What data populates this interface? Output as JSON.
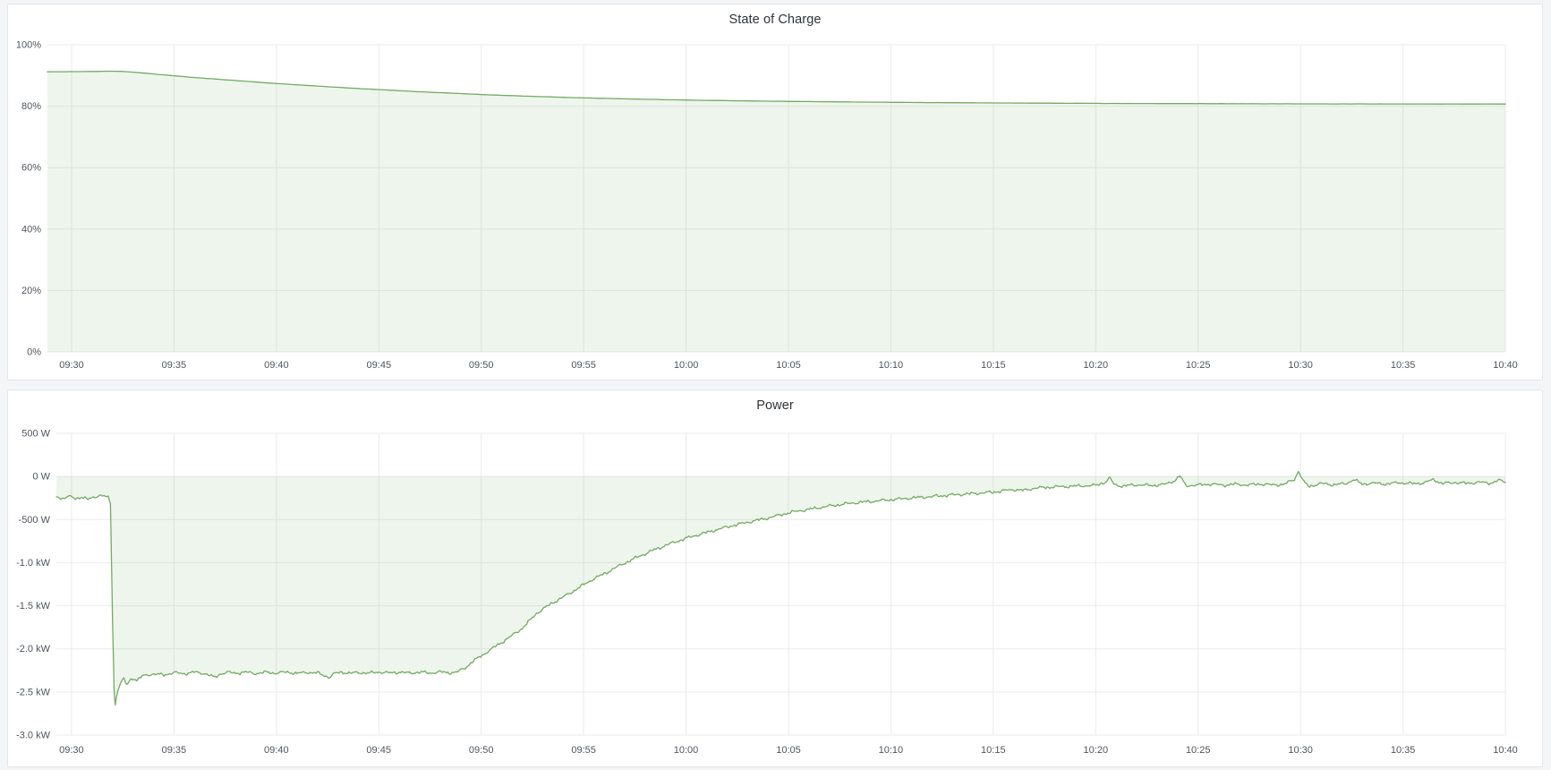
{
  "page": {
    "background": "#f4f5f6",
    "panel_background": "#ffffff",
    "panel_border": "#e4e6e9",
    "grid_color": "#ebebed",
    "axis_text_color": "#4f555c",
    "title_text_color": "#2f3338"
  },
  "chart_data": [
    {
      "type": "area",
      "title": "State of Charge",
      "xlabel": "",
      "ylabel": "",
      "legend": "none",
      "grid": true,
      "x_min": -1.18,
      "x_max": 70,
      "ylim": [
        0,
        100
      ],
      "x_axis": {
        "tick_minutes": [
          0,
          5,
          10,
          15,
          20,
          25,
          30,
          35,
          40,
          45,
          50,
          55,
          60,
          65,
          70
        ],
        "tick_labels": [
          "09:30",
          "09:35",
          "09:40",
          "09:45",
          "09:50",
          "09:55",
          "10:00",
          "10:05",
          "10:10",
          "10:15",
          "10:20",
          "10:25",
          "10:30",
          "10:35",
          "10:40"
        ]
      },
      "y_axis": {
        "tick_values": [
          0,
          20,
          40,
          60,
          80,
          100
        ],
        "tick_labels": [
          "0%",
          "20%",
          "40%",
          "60%",
          "80%",
          "100%"
        ]
      },
      "series": [
        {
          "name": "State of Charge",
          "color": "#74aa63",
          "fill": "rgba(116,170,99,0.12)",
          "fill_baseline": 0,
          "noise_amplitude": 0.02,
          "sample_step": 0.3,
          "keypoints": [
            [
              -1.18,
              91.2
            ],
            [
              0,
              91.25
            ],
            [
              1,
              91.3
            ],
            [
              1.9,
              91.4
            ],
            [
              2.4,
              91.35
            ],
            [
              3,
              91.1
            ],
            [
              4,
              90.5
            ],
            [
              5,
              89.9
            ],
            [
              6,
              89.35
            ],
            [
              7,
              88.85
            ],
            [
              8,
              88.35
            ],
            [
              9,
              87.85
            ],
            [
              10,
              87.4
            ],
            [
              11,
              86.95
            ],
            [
              12,
              86.55
            ],
            [
              13,
              86.15
            ],
            [
              14,
              85.75
            ],
            [
              15,
              85.4
            ],
            [
              16,
              85.05
            ],
            [
              17,
              84.7
            ],
            [
              18,
              84.4
            ],
            [
              19,
              84.1
            ],
            [
              20,
              83.8
            ],
            [
              21,
              83.55
            ],
            [
              22,
              83.3
            ],
            [
              23,
              83.1
            ],
            [
              24,
              82.9
            ],
            [
              25,
              82.7
            ],
            [
              26,
              82.55
            ],
            [
              27,
              82.4
            ],
            [
              28,
              82.25
            ],
            [
              29,
              82.12
            ],
            [
              30,
              82.0
            ],
            [
              31,
              81.9
            ],
            [
              32,
              81.8
            ],
            [
              33,
              81.72
            ],
            [
              34,
              81.64
            ],
            [
              35,
              81.57
            ],
            [
              36,
              81.5
            ],
            [
              37,
              81.44
            ],
            [
              38,
              81.38
            ],
            [
              39,
              81.32
            ],
            [
              40,
              81.27
            ],
            [
              41,
              81.22
            ],
            [
              42,
              81.18
            ],
            [
              43,
              81.14
            ],
            [
              44,
              81.1
            ],
            [
              45,
              81.06
            ],
            [
              46,
              81.03
            ],
            [
              47,
              81.0
            ],
            [
              48,
              80.97
            ],
            [
              49,
              80.95
            ],
            [
              50,
              80.92
            ],
            [
              51,
              80.9
            ],
            [
              52,
              80.88
            ],
            [
              53,
              80.86
            ],
            [
              54,
              80.85
            ],
            [
              55,
              80.83
            ],
            [
              56,
              80.82
            ],
            [
              57,
              80.8
            ],
            [
              58,
              80.79
            ],
            [
              59,
              80.78
            ],
            [
              60,
              80.77
            ],
            [
              61,
              80.76
            ],
            [
              62,
              80.75
            ],
            [
              63,
              80.74
            ],
            [
              64,
              80.73
            ],
            [
              65,
              80.73
            ],
            [
              66,
              80.72
            ],
            [
              67,
              80.72
            ],
            [
              68,
              80.71
            ],
            [
              69,
              80.71
            ],
            [
              70,
              80.7
            ]
          ]
        }
      ]
    },
    {
      "type": "area",
      "title": "Power",
      "xlabel": "",
      "ylabel": "",
      "legend": "none",
      "grid": true,
      "x_min": -0.74,
      "x_max": 70,
      "ylim": [
        -3000,
        500
      ],
      "x_axis": {
        "tick_minutes": [
          0,
          5,
          10,
          15,
          20,
          25,
          30,
          35,
          40,
          45,
          50,
          55,
          60,
          65,
          70
        ],
        "tick_labels": [
          "09:30",
          "09:35",
          "09:40",
          "09:45",
          "09:50",
          "09:55",
          "10:00",
          "10:05",
          "10:10",
          "10:15",
          "10:20",
          "10:25",
          "10:30",
          "10:35",
          "10:40"
        ]
      },
      "y_axis": {
        "tick_values": [
          500,
          0,
          -500,
          -1000,
          -1500,
          -2000,
          -2500,
          -3000
        ],
        "tick_labels": [
          "500 W",
          "0 W",
          "-500 W",
          "-1.0 kW",
          "-1.5 kW",
          "-2.0 kW",
          "-2.5 kW",
          "-3.0 kW"
        ]
      },
      "series": [
        {
          "name": "Power",
          "color": "#74aa63",
          "fill": "rgba(116,170,99,0.12)",
          "fill_baseline": 0,
          "noise_amplitude": 16,
          "sample_step": 0.07,
          "keypoints": [
            [
              -0.74,
              -235
            ],
            [
              -0.45,
              -255
            ],
            [
              -0.15,
              -230
            ],
            [
              0.2,
              -258
            ],
            [
              0.5,
              -235
            ],
            [
              0.8,
              -268
            ],
            [
              1.1,
              -242
            ],
            [
              1.35,
              -215
            ],
            [
              1.6,
              -228
            ],
            [
              1.8,
              -252
            ],
            [
              1.9,
              -310
            ],
            [
              2.0,
              -1650
            ],
            [
              2.08,
              -2480
            ],
            [
              2.13,
              -2650
            ],
            [
              2.25,
              -2480
            ],
            [
              2.4,
              -2395
            ],
            [
              2.55,
              -2350
            ],
            [
              2.7,
              -2420
            ],
            [
              2.85,
              -2360
            ],
            [
              3.0,
              -2338
            ],
            [
              3.2,
              -2368
            ],
            [
              3.45,
              -2318
            ],
            [
              3.7,
              -2300
            ],
            [
              4.0,
              -2292
            ],
            [
              4.5,
              -2302
            ],
            [
              5.0,
              -2276
            ],
            [
              5.5,
              -2288
            ],
            [
              6.0,
              -2270
            ],
            [
              6.5,
              -2286
            ],
            [
              7.0,
              -2332
            ],
            [
              7.25,
              -2292
            ],
            [
              7.6,
              -2272
            ],
            [
              8.0,
              -2282
            ],
            [
              8.5,
              -2270
            ],
            [
              9.0,
              -2286
            ],
            [
              9.5,
              -2272
            ],
            [
              10.0,
              -2282
            ],
            [
              10.5,
              -2268
            ],
            [
              11.0,
              -2284
            ],
            [
              11.5,
              -2272
            ],
            [
              12.0,
              -2280
            ],
            [
              12.6,
              -2332
            ],
            [
              12.85,
              -2284
            ],
            [
              13.2,
              -2270
            ],
            [
              13.6,
              -2284
            ],
            [
              14.0,
              -2272
            ],
            [
              14.5,
              -2282
            ],
            [
              15.0,
              -2268
            ],
            [
              15.5,
              -2280
            ],
            [
              16.0,
              -2270
            ],
            [
              16.5,
              -2282
            ],
            [
              17.0,
              -2270
            ],
            [
              17.5,
              -2280
            ],
            [
              18.0,
              -2268
            ],
            [
              18.4,
              -2276
            ],
            [
              18.8,
              -2272
            ],
            [
              19.2,
              -2222
            ],
            [
              19.6,
              -2145
            ],
            [
              20.0,
              -2082
            ],
            [
              20.5,
              -2003
            ],
            [
              21.0,
              -1926
            ],
            [
              21.5,
              -1845
            ],
            [
              22.0,
              -1763
            ],
            [
              22.4,
              -1665
            ],
            [
              22.7,
              -1590
            ],
            [
              23.0,
              -1540
            ],
            [
              23.5,
              -1465
            ],
            [
              24.0,
              -1400
            ],
            [
              24.5,
              -1330
            ],
            [
              25.0,
              -1256
            ],
            [
              25.5,
              -1186
            ],
            [
              26.0,
              -1130
            ],
            [
              26.5,
              -1066
            ],
            [
              27.0,
              -1006
            ],
            [
              27.5,
              -950
            ],
            [
              28.0,
              -896
            ],
            [
              28.5,
              -846
            ],
            [
              29.0,
              -800
            ],
            [
              29.5,
              -758
            ],
            [
              30.0,
              -718
            ],
            [
              30.5,
              -684
            ],
            [
              31.0,
              -650
            ],
            [
              31.5,
              -617
            ],
            [
              32.0,
              -586
            ],
            [
              32.5,
              -558
            ],
            [
              33.0,
              -532
            ],
            [
              33.5,
              -507
            ],
            [
              34.0,
              -483
            ],
            [
              34.5,
              -452
            ],
            [
              35.0,
              -422
            ],
            [
              35.5,
              -400
            ],
            [
              36.0,
              -382
            ],
            [
              36.5,
              -362
            ],
            [
              37.0,
              -344
            ],
            [
              37.5,
              -327
            ],
            [
              38.0,
              -312
            ],
            [
              38.5,
              -300
            ],
            [
              39.0,
              -290
            ],
            [
              39.5,
              -280
            ],
            [
              40.0,
              -270
            ],
            [
              41.0,
              -250
            ],
            [
              42.0,
              -232
            ],
            [
              43.0,
              -215
            ],
            [
              44.0,
              -199
            ],
            [
              45.0,
              -182
            ],
            [
              45.5,
              -165
            ],
            [
              46.0,
              -152
            ],
            [
              46.5,
              -163
            ],
            [
              47.0,
              -136
            ],
            [
              47.5,
              -128
            ],
            [
              48.0,
              -121
            ],
            [
              48.5,
              -116
            ],
            [
              49.0,
              -112
            ],
            [
              49.5,
              -108
            ],
            [
              50.0,
              -104
            ],
            [
              50.5,
              -62
            ],
            [
              50.7,
              -18
            ],
            [
              50.9,
              -95
            ],
            [
              51.3,
              -112
            ],
            [
              52.0,
              -96
            ],
            [
              52.7,
              -105
            ],
            [
              53.4,
              -92
            ],
            [
              53.9,
              -42
            ],
            [
              54.1,
              8
            ],
            [
              54.4,
              -106
            ],
            [
              55.0,
              -100
            ],
            [
              55.6,
              -88
            ],
            [
              56.2,
              -102
            ],
            [
              56.8,
              -90
            ],
            [
              57.4,
              -100
            ],
            [
              58.0,
              -88
            ],
            [
              58.6,
              -98
            ],
            [
              59.2,
              -92
            ],
            [
              59.7,
              -32
            ],
            [
              59.9,
              65
            ],
            [
              60.15,
              -62
            ],
            [
              60.4,
              -116
            ],
            [
              61.0,
              -82
            ],
            [
              61.6,
              -96
            ],
            [
              62.2,
              -85
            ],
            [
              62.6,
              -36
            ],
            [
              63.0,
              -88
            ],
            [
              63.6,
              -78
            ],
            [
              64.2,
              -88
            ],
            [
              64.8,
              -72
            ],
            [
              65.4,
              -84
            ],
            [
              66.0,
              -75
            ],
            [
              66.5,
              -36
            ],
            [
              66.9,
              -82
            ],
            [
              67.5,
              -70
            ],
            [
              68.1,
              -80
            ],
            [
              68.7,
              -68
            ],
            [
              69.3,
              -76
            ],
            [
              69.7,
              -46
            ],
            [
              70.0,
              -62
            ]
          ]
        }
      ]
    }
  ]
}
